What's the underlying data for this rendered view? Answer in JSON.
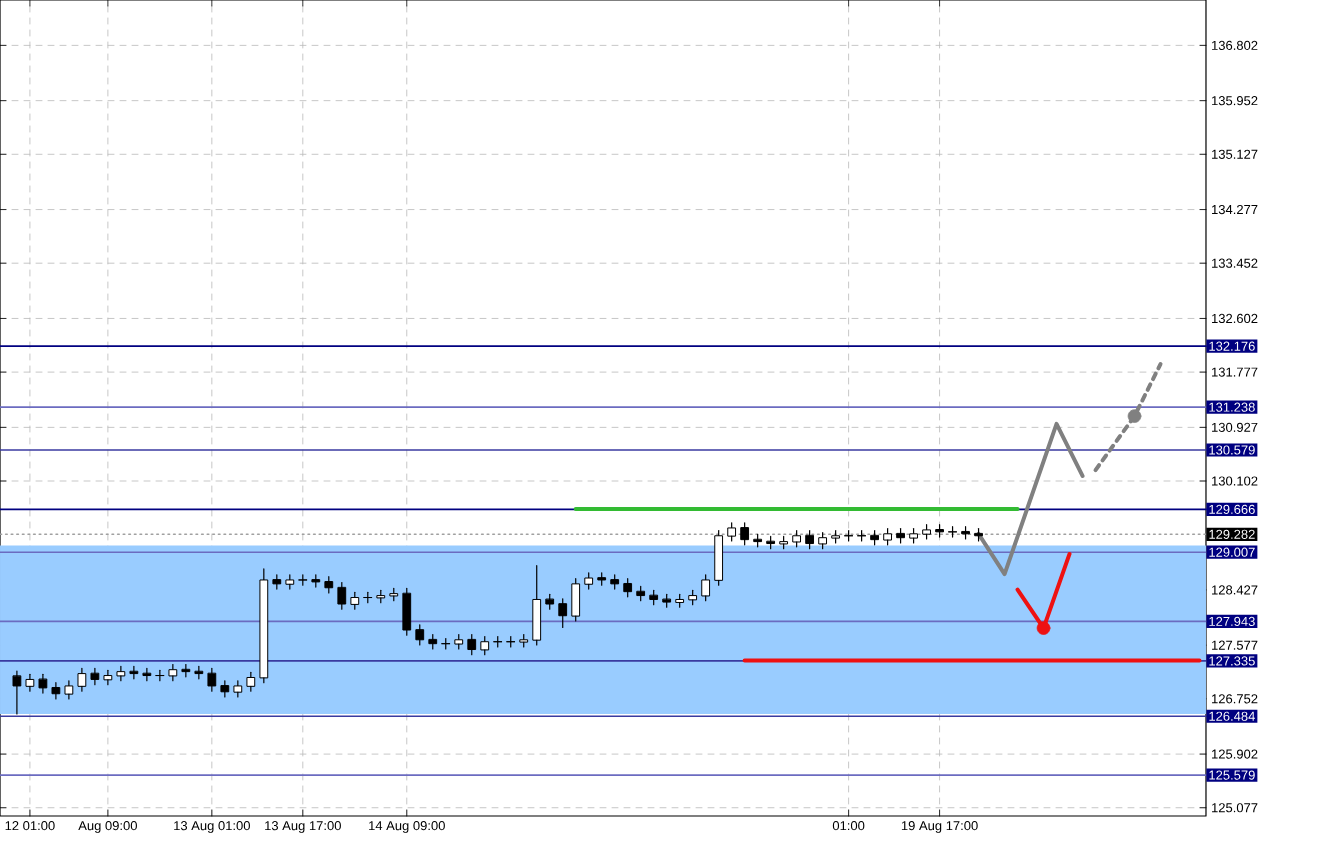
{
  "chart_data": {
    "type": "candlestick",
    "categories": [
      null,
      null,
      "12 01:00",
      null,
      null,
      null,
      null,
      null,
      "Aug 09:00",
      null,
      null,
      null,
      null,
      null,
      null,
      null,
      "13 Aug 01:00",
      null,
      null,
      null,
      null,
      null,
      null,
      "13 Aug 17:00",
      null,
      null,
      null,
      null,
      null,
      null,
      null,
      "14 Aug 09:00",
      null,
      null,
      null,
      null,
      null,
      null,
      null,
      null,
      null,
      null,
      null,
      null,
      null,
      null,
      null,
      null,
      null,
      null,
      null,
      null,
      null,
      null,
      null,
      null,
      null,
      null,
      null,
      null,
      null,
      null,
      null,
      null,
      null,
      "01:00",
      null,
      null,
      null,
      null,
      null,
      null,
      "19 Aug 17:00",
      null,
      null,
      null,
      null,
      null,
      null,
      null,
      null,
      null,
      null,
      null,
      null,
      null,
      null,
      null,
      null,
      null,
      null,
      null,
      null
    ],
    "ohlc": [
      null,
      [
        127.1,
        127.18,
        126.52,
        126.95
      ],
      [
        126.95,
        127.13,
        126.87,
        127.05
      ],
      [
        127.05,
        127.13,
        126.84,
        126.92
      ],
      [
        126.92,
        127.0,
        126.75,
        126.83
      ],
      [
        126.83,
        127.03,
        126.75,
        126.95
      ],
      [
        126.95,
        127.22,
        126.87,
        127.14
      ],
      [
        127.14,
        127.22,
        126.97,
        127.05
      ],
      [
        127.05,
        127.19,
        126.97,
        127.11
      ],
      [
        127.11,
        127.25,
        127.03,
        127.17
      ],
      [
        127.17,
        127.25,
        127.06,
        127.14
      ],
      [
        127.14,
        127.22,
        127.03,
        127.11
      ],
      [
        127.11,
        127.19,
        127.03,
        127.11
      ],
      [
        127.11,
        127.28,
        127.03,
        127.2
      ],
      [
        127.2,
        127.28,
        127.09,
        127.17
      ],
      [
        127.17,
        127.25,
        127.06,
        127.14
      ],
      [
        127.14,
        127.22,
        126.87,
        126.95
      ],
      [
        126.95,
        127.03,
        126.78,
        126.86
      ],
      [
        126.86,
        127.03,
        126.78,
        126.95
      ],
      [
        126.95,
        127.16,
        126.87,
        127.08
      ],
      [
        127.08,
        128.75,
        127.0,
        128.58
      ],
      [
        128.58,
        128.66,
        128.44,
        128.52
      ],
      [
        128.52,
        128.66,
        128.44,
        128.58
      ],
      [
        128.58,
        128.66,
        128.5,
        128.58
      ],
      [
        128.58,
        128.66,
        128.47,
        128.55
      ],
      [
        128.55,
        128.63,
        128.38,
        128.46
      ],
      [
        128.46,
        128.54,
        128.13,
        128.21
      ],
      [
        128.21,
        128.39,
        128.13,
        128.31
      ],
      [
        128.31,
        128.39,
        128.23,
        128.31
      ],
      [
        128.31,
        128.42,
        128.23,
        128.34
      ],
      [
        128.34,
        128.45,
        128.26,
        128.37
      ],
      [
        128.37,
        128.45,
        127.73,
        127.81
      ],
      [
        127.81,
        127.89,
        127.58,
        127.66
      ],
      [
        127.66,
        127.74,
        127.52,
        127.6
      ],
      [
        127.6,
        127.68,
        127.52,
        127.6
      ],
      [
        127.6,
        127.74,
        127.52,
        127.66
      ],
      [
        127.66,
        127.74,
        127.43,
        127.51
      ],
      [
        127.51,
        127.71,
        127.43,
        127.63
      ],
      [
        127.63,
        127.71,
        127.55,
        127.63
      ],
      [
        127.63,
        127.71,
        127.55,
        127.63
      ],
      [
        127.63,
        127.74,
        127.55,
        127.66
      ],
      [
        127.66,
        128.8,
        127.58,
        128.28
      ],
      [
        128.28,
        128.36,
        128.13,
        128.21
      ],
      [
        128.21,
        128.29,
        127.85,
        128.03
      ],
      [
        128.03,
        128.6,
        127.95,
        128.52
      ],
      [
        128.52,
        128.69,
        128.44,
        128.61
      ],
      [
        128.61,
        128.69,
        128.5,
        128.58
      ],
      [
        128.58,
        128.66,
        128.44,
        128.52
      ],
      [
        128.52,
        128.6,
        128.32,
        128.4
      ],
      [
        128.4,
        128.48,
        128.26,
        128.34
      ],
      [
        128.34,
        128.42,
        128.2,
        128.28
      ],
      [
        128.28,
        128.36,
        128.16,
        128.24
      ],
      [
        128.24,
        128.36,
        128.16,
        128.28
      ],
      [
        128.28,
        128.42,
        128.2,
        128.34
      ],
      [
        128.34,
        128.66,
        128.26,
        128.58
      ],
      [
        128.58,
        129.34,
        128.5,
        129.26
      ],
      [
        129.26,
        129.46,
        129.18,
        129.38
      ],
      [
        129.38,
        129.46,
        129.12,
        129.2
      ],
      [
        129.2,
        129.28,
        129.09,
        129.17
      ],
      [
        129.17,
        129.25,
        129.06,
        129.14
      ],
      [
        129.14,
        129.25,
        129.06,
        129.17
      ],
      [
        129.17,
        129.34,
        129.09,
        129.26
      ],
      [
        129.26,
        129.34,
        129.06,
        129.14
      ],
      [
        129.14,
        129.31,
        129.06,
        129.23
      ],
      [
        129.23,
        129.34,
        129.15,
        129.26
      ],
      [
        129.26,
        129.34,
        129.18,
        129.26
      ],
      [
        129.26,
        129.34,
        129.18,
        129.26
      ],
      [
        129.26,
        129.34,
        129.12,
        129.2
      ],
      [
        129.2,
        129.37,
        129.12,
        129.29
      ],
      [
        129.29,
        129.37,
        129.15,
        129.23
      ],
      [
        129.23,
        129.37,
        129.15,
        129.29
      ],
      [
        129.29,
        129.43,
        129.21,
        129.35
      ],
      [
        129.35,
        129.43,
        129.24,
        129.32
      ],
      [
        129.32,
        129.4,
        129.24,
        129.32
      ],
      [
        129.32,
        129.4,
        129.21,
        129.29
      ],
      [
        129.29,
        129.37,
        129.18,
        129.26
      ],
      null,
      null,
      null,
      null,
      null,
      null,
      null,
      null,
      null,
      null,
      null,
      null,
      null,
      null,
      null,
      null,
      null
    ],
    "series": [
      {
        "type": "line",
        "color": "#33bb33",
        "values": [
          null,
          null,
          null,
          null,
          null,
          null,
          null,
          null,
          null,
          null,
          null,
          null,
          null,
          null,
          null,
          null,
          null,
          null,
          null,
          null,
          null,
          null,
          null,
          null,
          null,
          null,
          null,
          null,
          null,
          null,
          null,
          null,
          null,
          null,
          null,
          null,
          null,
          null,
          null,
          null,
          null,
          null,
          null,
          null,
          129.67,
          null,
          null,
          null,
          null,
          null,
          null,
          null,
          null,
          null,
          null,
          null,
          null,
          null,
          null,
          null,
          null,
          null,
          null,
          null,
          null,
          null,
          null,
          null,
          null,
          null,
          null,
          null,
          null,
          null,
          null,
          null,
          null,
          null,
          129.67,
          null,
          null,
          null,
          null,
          null,
          null,
          null,
          null,
          null,
          null,
          null,
          null,
          null,
          null
        ]
      },
      {
        "type": "line",
        "color": "#ee1111",
        "values": [
          null,
          null,
          null,
          null,
          null,
          null,
          null,
          null,
          null,
          null,
          null,
          null,
          null,
          null,
          null,
          null,
          null,
          null,
          null,
          null,
          null,
          null,
          null,
          null,
          null,
          null,
          null,
          null,
          null,
          null,
          null,
          null,
          null,
          null,
          null,
          null,
          null,
          null,
          null,
          null,
          null,
          null,
          null,
          null,
          null,
          null,
          null,
          null,
          null,
          null,
          null,
          null,
          null,
          null,
          null,
          null,
          null,
          127.34,
          null,
          null,
          null,
          null,
          null,
          null,
          null,
          null,
          null,
          null,
          null,
          null,
          null,
          null,
          null,
          null,
          null,
          null,
          null,
          null,
          null,
          null,
          null,
          null,
          null,
          null,
          null,
          null,
          null,
          null,
          null,
          null,
          null,
          null,
          127.34
        ]
      },
      {
        "type": "line",
        "color": "#808080",
        "values": [
          null,
          null,
          null,
          null,
          null,
          null,
          null,
          null,
          null,
          null,
          null,
          null,
          null,
          null,
          null,
          null,
          null,
          null,
          null,
          null,
          null,
          null,
          null,
          null,
          null,
          null,
          null,
          null,
          null,
          null,
          null,
          null,
          null,
          null,
          null,
          null,
          null,
          null,
          null,
          null,
          null,
          null,
          null,
          null,
          null,
          null,
          null,
          null,
          null,
          null,
          null,
          null,
          null,
          null,
          null,
          null,
          null,
          null,
          null,
          null,
          null,
          null,
          null,
          null,
          null,
          null,
          null,
          null,
          null,
          null,
          null,
          null,
          null,
          null,
          null,
          129.29,
          null,
          128.67,
          null,
          null,
          null,
          130.98,
          null,
          130.18,
          null,
          null,
          null,
          null,
          null,
          null,
          null,
          null,
          null
        ]
      },
      {
        "type": "line",
        "color": "#808080",
        "line_style": "dashed",
        "values": [
          null,
          null,
          null,
          null,
          null,
          null,
          null,
          null,
          null,
          null,
          null,
          null,
          null,
          null,
          null,
          null,
          null,
          null,
          null,
          null,
          null,
          null,
          null,
          null,
          null,
          null,
          null,
          null,
          null,
          null,
          null,
          null,
          null,
          null,
          null,
          null,
          null,
          null,
          null,
          null,
          null,
          null,
          null,
          null,
          null,
          null,
          null,
          null,
          null,
          null,
          null,
          null,
          null,
          null,
          null,
          null,
          null,
          null,
          null,
          null,
          null,
          null,
          null,
          null,
          null,
          null,
          null,
          null,
          null,
          null,
          null,
          null,
          null,
          null,
          null,
          null,
          null,
          null,
          null,
          null,
          null,
          null,
          null,
          null,
          130.27,
          null,
          null,
          131.1,
          null,
          131.9,
          null,
          null,
          null
        ]
      },
      {
        "type": "line",
        "color": "#ee1111",
        "values": [
          null,
          null,
          null,
          null,
          null,
          null,
          null,
          null,
          null,
          null,
          null,
          null,
          null,
          null,
          null,
          null,
          null,
          null,
          null,
          null,
          null,
          null,
          null,
          null,
          null,
          null,
          null,
          null,
          null,
          null,
          null,
          null,
          null,
          null,
          null,
          null,
          null,
          null,
          null,
          null,
          null,
          null,
          null,
          null,
          null,
          null,
          null,
          null,
          null,
          null,
          null,
          null,
          null,
          null,
          null,
          null,
          null,
          null,
          null,
          null,
          null,
          null,
          null,
          null,
          null,
          null,
          null,
          null,
          null,
          null,
          null,
          null,
          null,
          null,
          null,
          null,
          null,
          null,
          128.43,
          null,
          127.84,
          null,
          128.98,
          null,
          null,
          null,
          null,
          null,
          null,
          null,
          null,
          null,
          null
        ]
      },
      {
        "type": "scatter",
        "color": "#808080",
        "marker": "circle",
        "values": [
          null,
          null,
          null,
          null,
          null,
          null,
          null,
          null,
          null,
          null,
          null,
          null,
          null,
          null,
          null,
          null,
          null,
          null,
          null,
          null,
          null,
          null,
          null,
          null,
          null,
          null,
          null,
          null,
          null,
          null,
          null,
          null,
          null,
          null,
          null,
          null,
          null,
          null,
          null,
          null,
          null,
          null,
          null,
          null,
          null,
          null,
          null,
          null,
          null,
          null,
          null,
          null,
          null,
          null,
          null,
          null,
          null,
          null,
          null,
          null,
          null,
          null,
          null,
          null,
          null,
          null,
          null,
          null,
          null,
          null,
          null,
          null,
          null,
          null,
          null,
          null,
          null,
          null,
          null,
          null,
          null,
          null,
          null,
          null,
          null,
          null,
          null,
          131.1,
          null,
          null,
          null,
          null,
          null
        ]
      },
      {
        "type": "scatter",
        "color": "#ee1111",
        "marker": "circle",
        "values": [
          null,
          null,
          null,
          null,
          null,
          null,
          null,
          null,
          null,
          null,
          null,
          null,
          null,
          null,
          null,
          null,
          null,
          null,
          null,
          null,
          null,
          null,
          null,
          null,
          null,
          null,
          null,
          null,
          null,
          null,
          null,
          null,
          null,
          null,
          null,
          null,
          null,
          null,
          null,
          null,
          null,
          null,
          null,
          null,
          null,
          null,
          null,
          null,
          null,
          null,
          null,
          null,
          null,
          null,
          null,
          null,
          null,
          null,
          null,
          null,
          null,
          null,
          null,
          null,
          null,
          null,
          null,
          null,
          null,
          null,
          null,
          null,
          null,
          null,
          null,
          null,
          null,
          null,
          null,
          null,
          127.84,
          null,
          null,
          null,
          null,
          null,
          null,
          null,
          null,
          null,
          null,
          null,
          null
        ]
      }
    ],
    "ylim": [
      124.95,
      137.5
    ],
    "yticks": [
      136.802,
      135.952,
      135.127,
      134.277,
      133.452,
      132.602,
      131.777,
      130.927,
      130.102,
      128.427,
      127.577,
      126.752,
      125.902,
      125.077
    ],
    "grid": true,
    "bands": [
      {
        "axis": "y",
        "from": 126.52,
        "to": 129.11,
        "color": "#99ccff"
      }
    ],
    "ref_lines": [
      {
        "axis": "y",
        "value": 132.176,
        "label": "132.176",
        "color": "#000080"
      },
      {
        "axis": "y",
        "value": 131.238,
        "label": "131.238",
        "color": "#6b6bc0"
      },
      {
        "axis": "y",
        "value": 130.579,
        "label": "130.579",
        "color": "#3a3aa0"
      },
      {
        "axis": "y",
        "value": 129.666,
        "label": "129.666",
        "color": "#000080"
      },
      {
        "axis": "y",
        "value": 129.282,
        "label": "129.282",
        "color": "#a0a0a0",
        "line_style": "dotted"
      },
      {
        "axis": "y",
        "value": 129.007,
        "label": "129.007",
        "color": "#6b6bc0"
      },
      {
        "axis": "y",
        "value": 127.943,
        "label": "127.943",
        "color": "#6b6bc0"
      },
      {
        "axis": "y",
        "value": 127.335,
        "label": "127.335",
        "color": "#3a3aa0"
      },
      {
        "axis": "y",
        "value": 126.484,
        "label": "126.484",
        "color": "#3a3aa0"
      },
      {
        "axis": "y",
        "value": 125.579,
        "label": "125.579",
        "color": "#6b6bc0"
      }
    ]
  }
}
